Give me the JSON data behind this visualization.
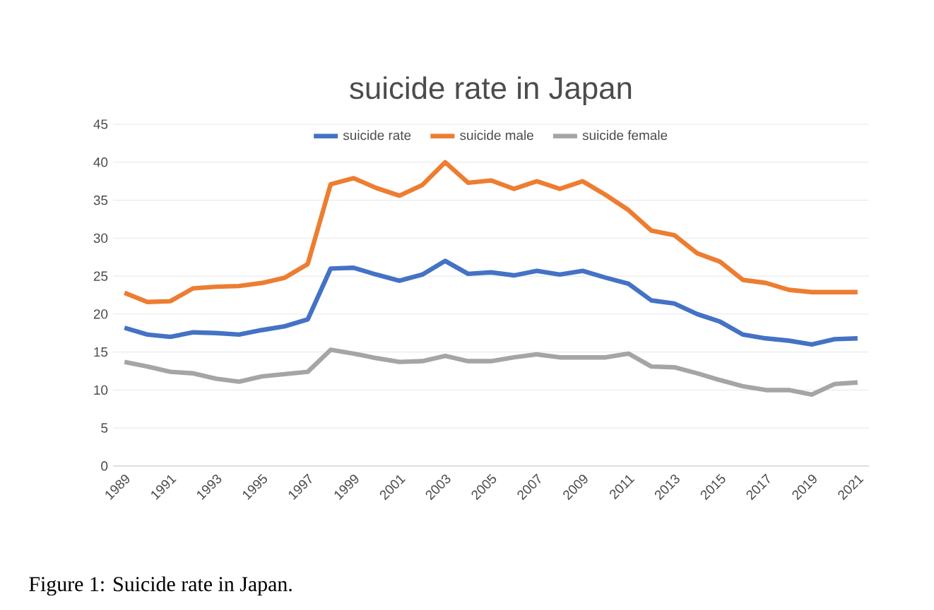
{
  "chart_data": {
    "type": "line",
    "title": "suicide rate in Japan",
    "categories": [
      "1989",
      null,
      "1991",
      null,
      "1993",
      null,
      "1995",
      null,
      "1997",
      null,
      "1999",
      null,
      "2001",
      null,
      "2003",
      null,
      "2005",
      null,
      "2007",
      null,
      "2009",
      null,
      "2011",
      null,
      "2013",
      null,
      "2015",
      null,
      "2017",
      null,
      "2019",
      null,
      "2021"
    ],
    "series": [
      {
        "name": "suicide rate",
        "color": "#4472c4",
        "values": [
          18.2,
          17.3,
          17.0,
          17.6,
          17.5,
          17.3,
          17.9,
          18.4,
          19.3,
          26.0,
          26.1,
          25.2,
          24.4,
          25.2,
          27.0,
          25.3,
          25.5,
          25.1,
          25.7,
          25.2,
          25.7,
          24.8,
          24.0,
          21.8,
          21.4,
          20.0,
          19.0,
          17.3,
          16.8,
          16.5,
          16.0,
          16.7,
          16.8
        ]
      },
      {
        "name": "suicide male",
        "color": "#ed7d31",
        "values": [
          22.8,
          21.6,
          21.7,
          23.4,
          23.6,
          23.7,
          24.1,
          24.8,
          26.6,
          37.1,
          37.9,
          36.6,
          35.6,
          37.0,
          40.0,
          37.3,
          37.6,
          36.5,
          37.5,
          36.5,
          37.5,
          35.7,
          33.7,
          31.0,
          30.4,
          28.0,
          26.9,
          24.5,
          24.1,
          23.2,
          22.9,
          22.9,
          22.9
        ]
      },
      {
        "name": "suicide female",
        "color": "#a5a5a5",
        "values": [
          13.7,
          13.1,
          12.4,
          12.2,
          11.5,
          11.1,
          11.8,
          12.1,
          12.4,
          15.3,
          14.8,
          14.2,
          13.7,
          13.8,
          14.5,
          13.8,
          13.8,
          14.3,
          14.7,
          14.3,
          14.3,
          14.3,
          14.8,
          13.1,
          13.0,
          12.2,
          11.3,
          10.5,
          10.0,
          10.0,
          9.4,
          10.8,
          11.0
        ]
      }
    ],
    "ylim": [
      0,
      45
    ],
    "yticks": [
      0,
      5,
      10,
      15,
      20,
      25,
      30,
      35,
      40,
      45
    ],
    "grid": "y",
    "legend": "top",
    "marker": "none",
    "line_style": "solid",
    "annotations": [
      "Figure 1: Suicide rate in Japan."
    ]
  }
}
